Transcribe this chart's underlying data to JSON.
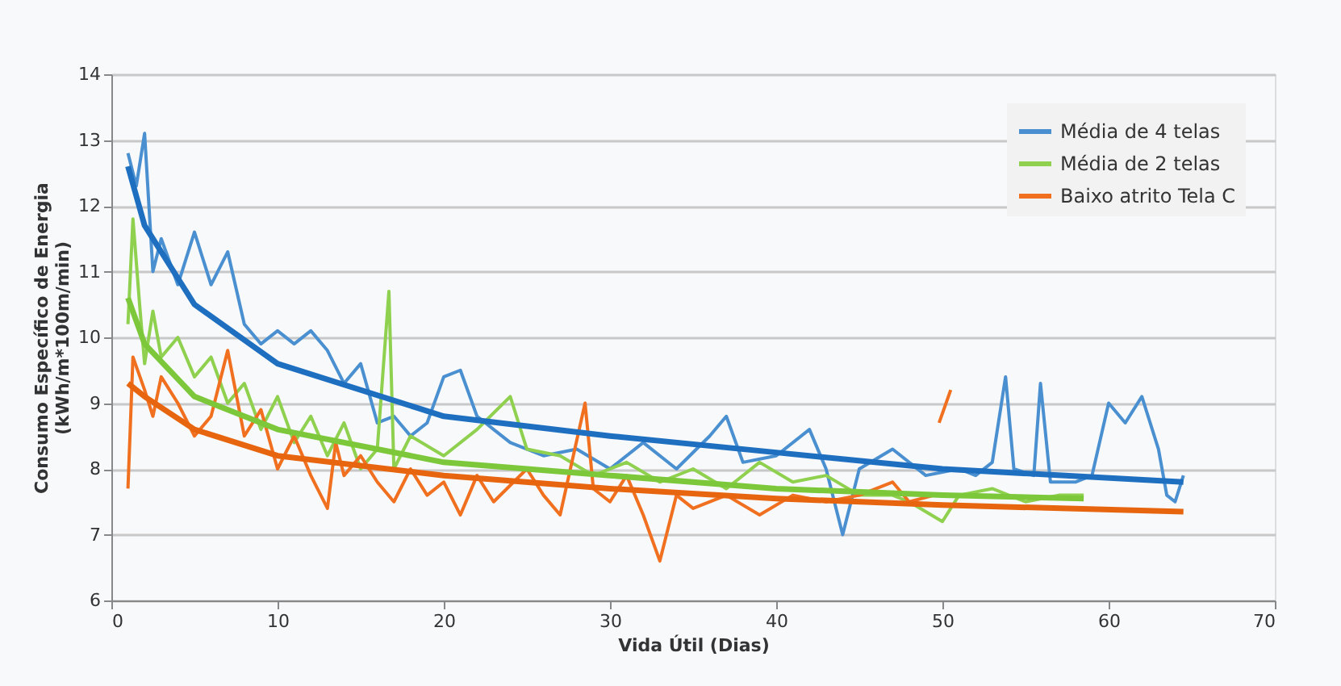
{
  "chart_data": {
    "type": "line",
    "xlabel": "Vida Útil (Dias)",
    "ylabel": "Consumo Específico de Energia\n(kWh/m*100m/min)",
    "xlim": [
      0,
      70
    ],
    "xticks": [
      0,
      10,
      20,
      30,
      40,
      50,
      60,
      70
    ],
    "ylim": [
      6,
      14
    ],
    "yticks": [
      6,
      7,
      8,
      9,
      10,
      11,
      12,
      13,
      14
    ],
    "grid": "y",
    "legend": "top right",
    "marker": "none",
    "line_style": "solid",
    "series": [
      {
        "name": "Média de 4 telas",
        "color": "#4a90d0",
        "x": [
          1,
          1.5,
          2,
          2.5,
          3,
          4,
          5,
          6,
          7,
          8,
          9,
          10,
          11,
          12,
          13,
          14,
          15,
          16,
          17,
          18,
          19,
          20,
          21,
          22,
          23,
          24,
          26,
          28,
          30,
          32,
          34,
          36,
          37,
          38,
          40,
          42,
          43,
          44,
          45,
          47,
          49,
          51,
          52,
          53,
          53.8,
          54.3,
          55.5,
          55.9,
          56.5,
          58,
          59,
          60,
          61,
          62,
          63,
          63.5,
          64,
          64.5
        ],
        "values": [
          12.8,
          12.3,
          13.1,
          11.0,
          11.5,
          10.8,
          11.6,
          10.8,
          11.3,
          10.2,
          9.9,
          10.1,
          9.9,
          10.1,
          9.8,
          9.3,
          9.6,
          8.7,
          8.8,
          8.5,
          8.7,
          9.4,
          9.5,
          8.8,
          8.6,
          8.4,
          8.2,
          8.3,
          8.0,
          8.4,
          8.0,
          8.5,
          8.8,
          8.1,
          8.2,
          8.6,
          8.0,
          7.0,
          8.0,
          8.3,
          7.9,
          8.0,
          7.9,
          8.1,
          9.4,
          8.0,
          7.9,
          9.3,
          7.8,
          7.8,
          7.9,
          9.0,
          8.7,
          9.1,
          8.3,
          7.6,
          7.5,
          7.9
        ]
      },
      {
        "name": "Média de 2 telas",
        "color": "#8fd14f",
        "x": [
          1,
          1.3,
          1.7,
          2,
          2.5,
          3,
          4,
          5,
          6,
          7,
          8,
          9,
          10,
          11,
          12,
          13,
          14,
          15,
          16,
          16.7,
          17,
          18,
          20,
          22,
          24,
          25,
          27,
          29,
          31,
          33,
          35,
          37,
          39,
          41,
          43,
          45,
          47,
          48,
          50,
          51,
          53,
          55,
          57,
          58.5
        ],
        "values": [
          10.2,
          11.8,
          10.5,
          9.6,
          10.4,
          9.7,
          10.0,
          9.4,
          9.7,
          9.0,
          9.3,
          8.6,
          9.1,
          8.4,
          8.8,
          8.2,
          8.7,
          8.0,
          8.3,
          10.7,
          8.0,
          8.5,
          8.2,
          8.6,
          9.1,
          8.3,
          8.2,
          7.9,
          8.1,
          7.8,
          8.0,
          7.7,
          8.1,
          7.8,
          7.9,
          7.6,
          7.6,
          7.5,
          7.2,
          7.6,
          7.7,
          7.5,
          7.6,
          7.6
        ]
      },
      {
        "name": "Baixo atrito Tela C",
        "color": "#f07020",
        "x": [
          1,
          1.3,
          2,
          2.5,
          3,
          4,
          5,
          6,
          7,
          8,
          9,
          10,
          11,
          12,
          13,
          13.5,
          14,
          15,
          16,
          17,
          18,
          19,
          20,
          21,
          22,
          23,
          25,
          26,
          27,
          28.5,
          29,
          30,
          31,
          32,
          33,
          34,
          35,
          37,
          39,
          41,
          43,
          45,
          47,
          48,
          49.5,
          49.7,
          49.8,
          50.5
        ],
        "values": [
          7.7,
          9.7,
          9.2,
          8.8,
          9.4,
          9.0,
          8.5,
          8.8,
          9.8,
          8.5,
          8.9,
          8.0,
          8.5,
          7.9,
          7.4,
          8.4,
          7.9,
          8.2,
          7.8,
          7.5,
          8.0,
          7.6,
          7.8,
          7.3,
          7.9,
          7.5,
          8.0,
          7.6,
          7.3,
          9.0,
          7.7,
          7.5,
          7.9,
          7.3,
          6.6,
          7.6,
          7.4,
          7.6,
          7.3,
          7.6,
          7.5,
          7.6,
          7.8,
          7.5,
          7.6,
          null,
          8.7,
          9.2
        ]
      },
      {
        "type": "line",
        "color": "#1f6fc0",
        "x": [
          1,
          2,
          5,
          10,
          20,
          30,
          40,
          50,
          64.5
        ],
        "values": [
          12.6,
          11.7,
          10.5,
          9.6,
          8.8,
          8.5,
          8.25,
          8.0,
          7.8
        ]
      },
      {
        "type": "line",
        "color": "#7cc83a",
        "x": [
          1,
          2,
          5,
          10,
          20,
          30,
          40,
          50,
          58.5
        ],
        "values": [
          10.6,
          9.9,
          9.1,
          8.6,
          8.1,
          7.9,
          7.7,
          7.6,
          7.55
        ]
      },
      {
        "type": "line",
        "color": "#e8650f",
        "x": [
          1,
          2,
          5,
          10,
          20,
          30,
          40,
          50,
          64.5
        ],
        "values": [
          9.3,
          9.1,
          8.6,
          8.2,
          7.9,
          7.7,
          7.55,
          7.45,
          7.35
        ]
      }
    ]
  }
}
